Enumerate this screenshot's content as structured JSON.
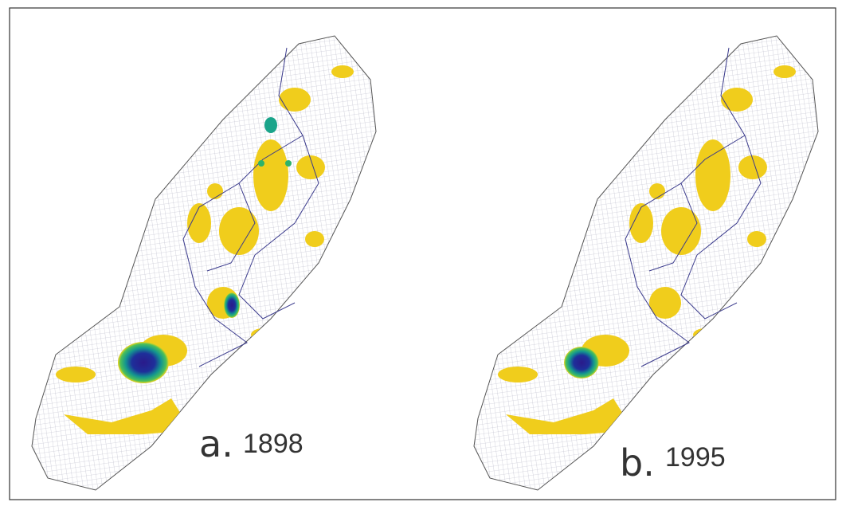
{
  "panels": [
    {
      "letter": "a.",
      "year": "1898"
    },
    {
      "letter": "b.",
      "year": "1995"
    }
  ]
}
